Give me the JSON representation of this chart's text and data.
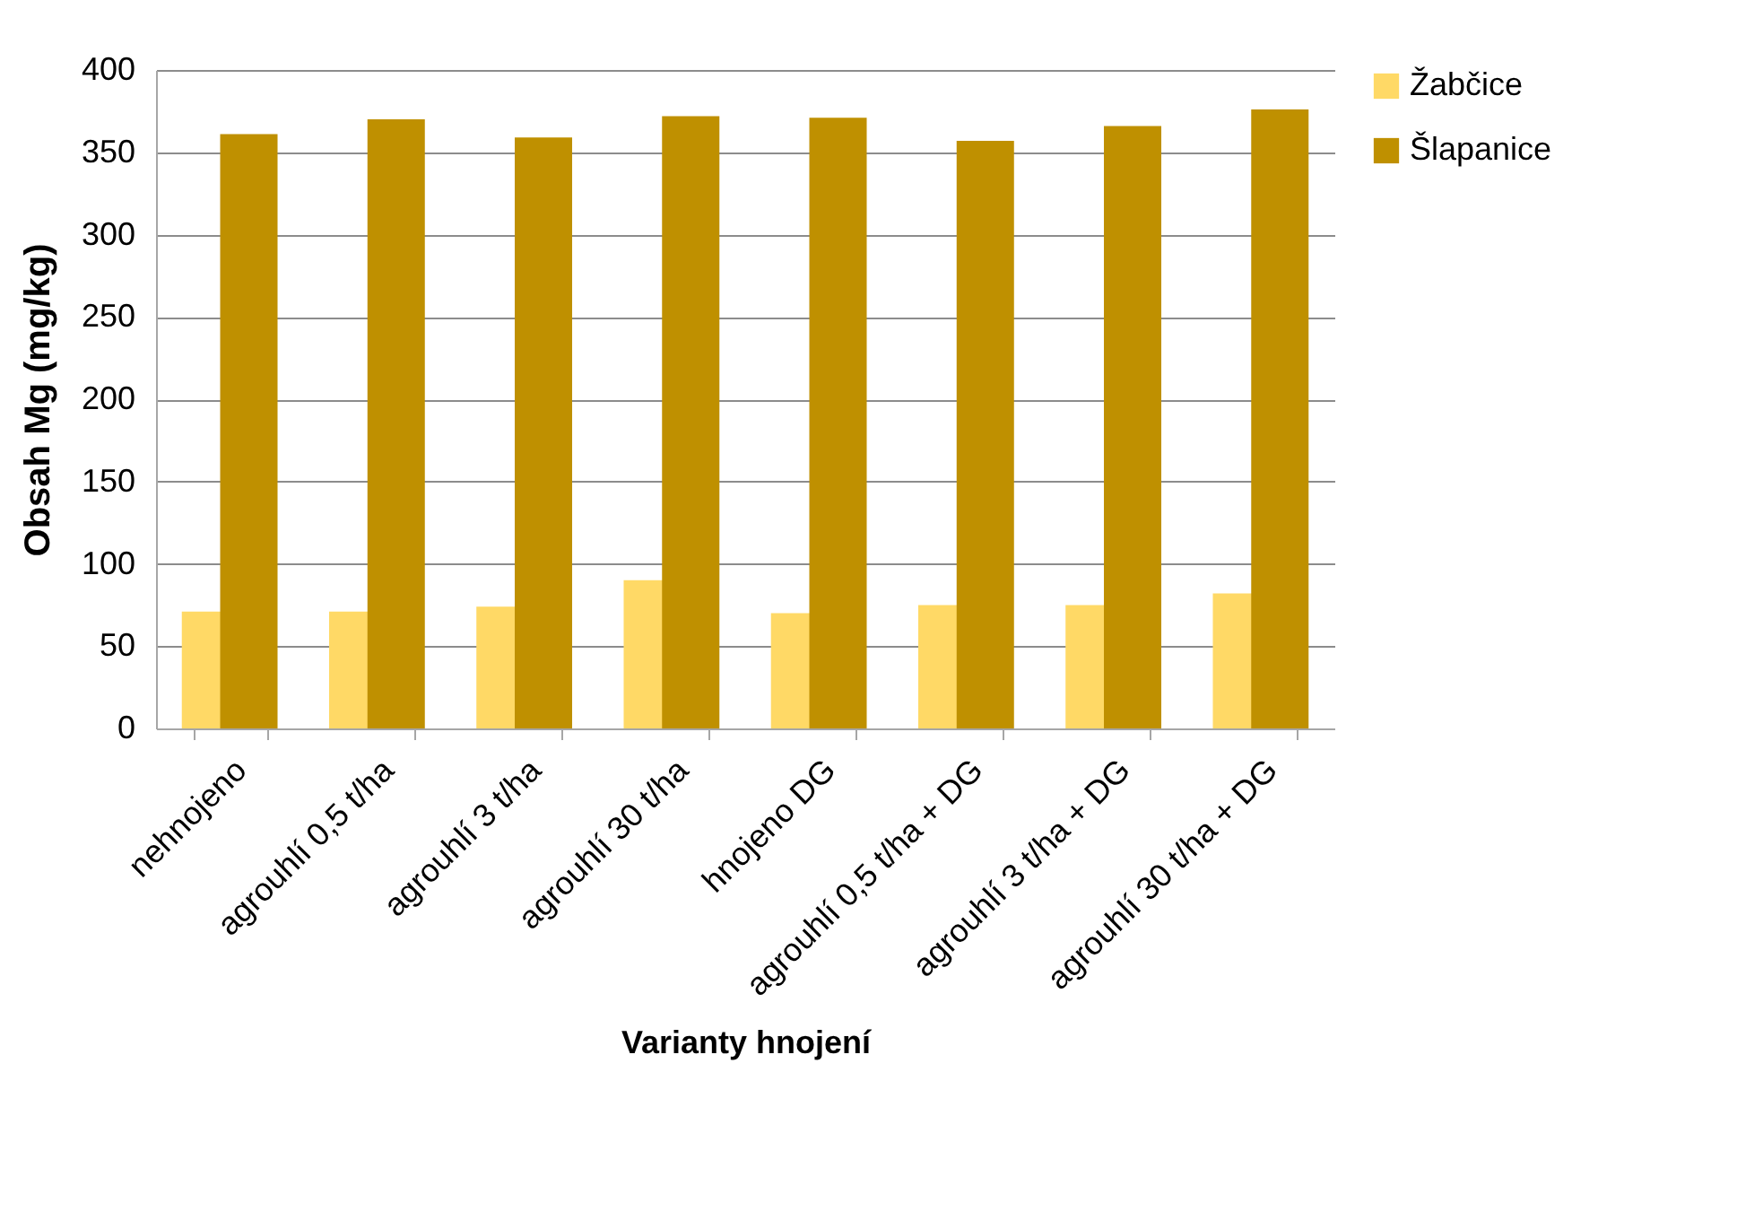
{
  "chart_data": {
    "type": "bar",
    "xlabel": "Varianty hnojení",
    "ylabel": "Obsah Mg (mg/kg)",
    "categories": [
      "nehnojeno",
      "agrouhlí 0,5 t/ha",
      "agrouhlí 3 t/ha",
      "agrouhlí 30 t/ha",
      "hnojeno DG",
      "agrouhlí 0,5 t/ha + DG",
      "agrouhlí 3 t/ha + DG",
      "agrouhlí 30 t/ha + DG"
    ],
    "series": [
      {
        "name": "Žabčice",
        "color": "#ffd966",
        "values": [
          71,
          71,
          74,
          90,
          70,
          75,
          75,
          82
        ]
      },
      {
        "name": "Šlapanice",
        "color": "#bf9000",
        "values": [
          361,
          370,
          359,
          372,
          371,
          357,
          366,
          376
        ]
      }
    ],
    "ylim": [
      0,
      400
    ],
    "yticks": [
      0,
      50,
      100,
      150,
      200,
      250,
      300,
      350,
      400
    ],
    "grid": "y",
    "legend": "right"
  }
}
